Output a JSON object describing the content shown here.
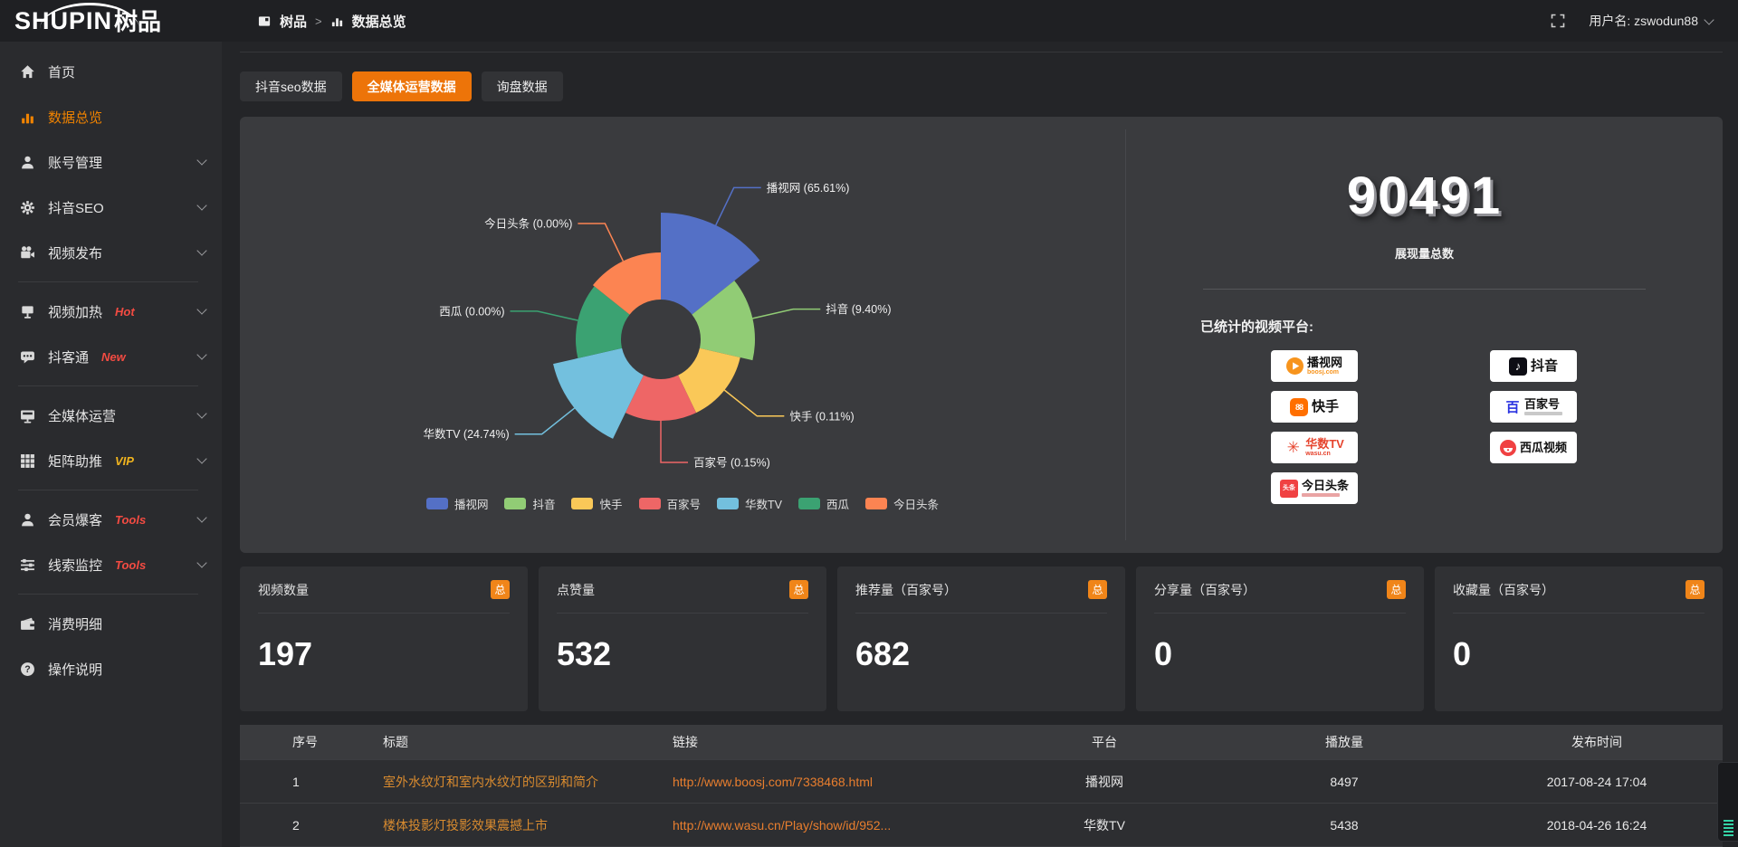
{
  "topbar": {
    "logo_en": "SHUPIN",
    "logo_cn": "树品",
    "breadcrumb": {
      "root": "树品",
      "sep": ">",
      "current": "数据总览"
    },
    "user_label": "用户名: zswodun88"
  },
  "sidebar": {
    "items": [
      {
        "label": "首页",
        "icon": "home-icon",
        "active": false
      },
      {
        "label": "数据总览",
        "icon": "bar-chart-icon",
        "active": true
      },
      {
        "label": "账号管理",
        "icon": "user-icon"
      },
      {
        "label": "抖音SEO",
        "icon": "gear-icon"
      },
      {
        "label": "视频发布",
        "icon": "video-camera-icon"
      },
      {
        "label": "视频加热",
        "icon": "screen-icon",
        "badge": "Hot",
        "badge_color": "#f34b42"
      },
      {
        "label": "抖客通",
        "icon": "chat-icon",
        "badge": "New",
        "badge_color": "#f34b42"
      },
      {
        "label": "全媒体运营",
        "icon": "monitor-icon"
      },
      {
        "label": "矩阵助推",
        "icon": "grid-icon",
        "badge": "VIP",
        "badge_color": "#f0b41e"
      },
      {
        "label": "会员爆客",
        "icon": "person-icon",
        "badge": "Tools",
        "badge_color": "#f34b42"
      },
      {
        "label": "线索监控",
        "icon": "sliders-icon",
        "badge": "Tools",
        "badge_color": "#f34b42"
      },
      {
        "label": "消费明细",
        "icon": "wallet-icon"
      },
      {
        "label": "操作说明",
        "icon": "question-icon"
      }
    ]
  },
  "tabs": [
    {
      "label": "抖音seo数据",
      "active": false
    },
    {
      "label": "全媒体运营数据",
      "active": true
    },
    {
      "label": "询盘数据",
      "active": false
    }
  ],
  "chart_data": {
    "type": "pie",
    "subtype": "nightingale-rose",
    "title": "",
    "legend_position": "bottom",
    "inner_radius_px": 44,
    "start_angle_deg": 0,
    "equal_angles": true,
    "series": [
      {
        "name": "播视网",
        "pct": 65.61,
        "color": "#5470c6",
        "radius_px": 140
      },
      {
        "name": "抖音",
        "pct": 9.4,
        "color": "#91cc75",
        "radius_px": 104
      },
      {
        "name": "快手",
        "pct": 0.11,
        "color": "#fac858",
        "radius_px": 90
      },
      {
        "name": "百家号",
        "pct": 0.15,
        "color": "#ee6666",
        "radius_px": 90
      },
      {
        "name": "华数TV",
        "pct": 24.74,
        "color": "#73c0de",
        "radius_px": 122
      },
      {
        "name": "西瓜",
        "pct": 0.0,
        "color": "#3ba272",
        "radius_px": 94
      },
      {
        "name": "今日头条",
        "pct": 0.0,
        "color": "#fc8452",
        "radius_px": 96
      }
    ]
  },
  "summary": {
    "total_value": "90491",
    "total_label": "展现量总数",
    "platforms_label": "已统计的视频平台:",
    "platforms": [
      {
        "name": "播视网",
        "sub": "boosj.com"
      },
      {
        "name": "抖音",
        "sub": ""
      },
      {
        "name": "快手",
        "sub": ""
      },
      {
        "name": "百家号",
        "sub": ""
      },
      {
        "name": "华数TV",
        "sub": "wasu.cn"
      },
      {
        "name": "西瓜视频",
        "sub": ""
      },
      {
        "name": "今日头条",
        "sub": ""
      }
    ],
    "toutiao_logo_text": "头条",
    "baijia_logo_text": "百"
  },
  "stat_cards": [
    {
      "title": "视频数量",
      "badge": "总",
      "value": "197"
    },
    {
      "title": "点赞量",
      "badge": "总",
      "value": "532"
    },
    {
      "title": "推荐量（百家号）",
      "badge": "总",
      "value": "682"
    },
    {
      "title": "分享量（百家号）",
      "badge": "总",
      "value": "0"
    },
    {
      "title": "收藏量（百家号）",
      "badge": "总",
      "value": "0"
    }
  ],
  "table": {
    "headers": {
      "no": "序号",
      "title": "标题",
      "link": "链接",
      "platform": "平台",
      "plays": "播放量",
      "time": "发布时间"
    },
    "rows": [
      {
        "no": "1",
        "title": "室外水纹灯和室内水纹灯的区别和简介",
        "link": "http://www.boosj.com/7338468.html",
        "platform": "播视网",
        "plays": "8497",
        "time": "2017-08-24 17:04"
      },
      {
        "no": "2",
        "title": "楼体投影灯投影效果震撼上市",
        "link": "http://www.wasu.cn/Play/show/id/952...",
        "platform": "华数TV",
        "plays": "5438",
        "time": "2018-04-26 16:24"
      }
    ]
  },
  "colors": {
    "accent_orange": "#ed7409",
    "badge_orange": "#f08519",
    "sidebar_active": "#f08300",
    "title_orange": "#d98b2f",
    "link_orange": "#e87e2e"
  }
}
